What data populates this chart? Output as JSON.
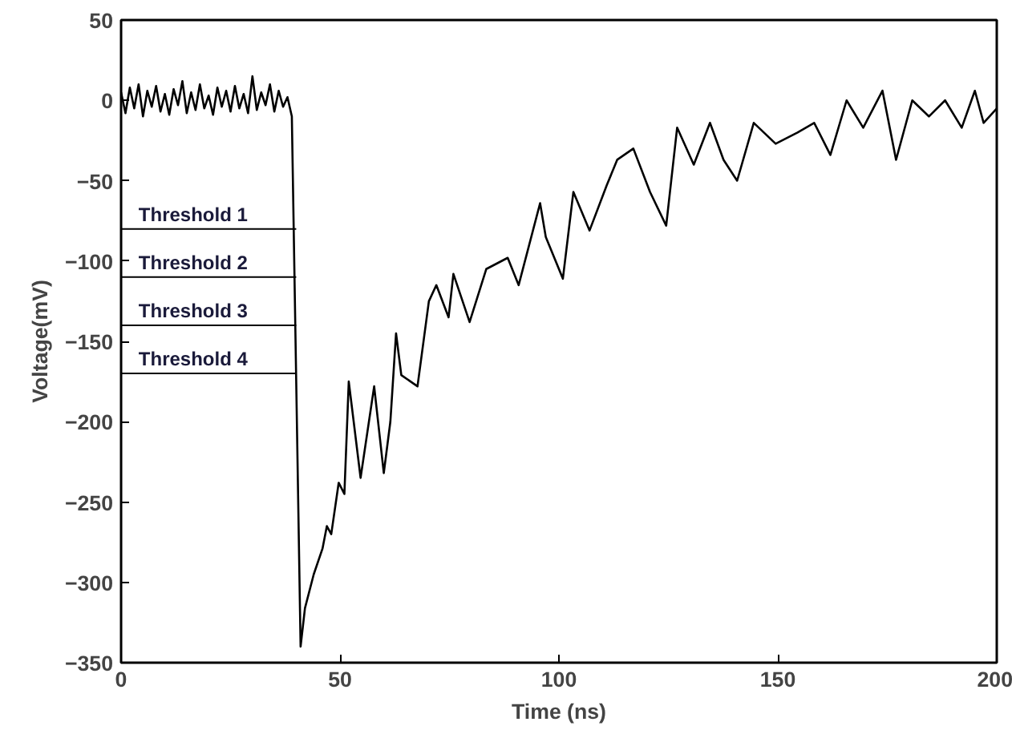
{
  "chart_data": {
    "type": "line",
    "xlabel": "Time (ns)",
    "ylabel": "Voltage(mV)",
    "xlim": [
      0,
      200
    ],
    "ylim": [
      -350,
      50
    ],
    "xticks": [
      0,
      50,
      100,
      150,
      200
    ],
    "yticks": [
      -350,
      -300,
      -250,
      -200,
      -150,
      -100,
      -50,
      0,
      50
    ],
    "grid": false,
    "legend": "left",
    "series": [
      {
        "color": "#000000",
        "x": [
          0,
          1,
          2,
          3,
          4,
          5,
          6,
          7,
          8,
          9,
          10,
          11,
          12,
          13,
          14,
          15,
          16,
          17,
          18,
          19,
          20,
          21,
          22,
          23,
          24,
          25,
          26,
          27,
          28,
          29,
          30,
          31,
          32,
          33,
          34,
          35,
          36,
          37,
          38,
          39,
          41,
          42,
          44,
          46,
          47,
          48,
          49.7,
          51,
          52,
          54.7,
          57.8,
          60,
          61.5,
          62.8,
          64,
          67.7,
          70.3,
          72,
          74.8,
          75.9,
          79.6,
          83.4,
          88.3,
          90.8,
          95.7,
          97,
          100.9,
          103.3,
          107,
          110.9,
          113.3,
          117,
          120.8,
          124.5,
          127,
          130.8,
          134.5,
          137.6,
          140.7,
          144.5,
          149.5,
          154.5,
          158.3,
          162,
          165.7,
          169.5,
          173.9,
          177,
          180.7,
          184.5,
          188.2,
          192,
          195,
          197,
          200
        ],
        "values": [
          5,
          -8,
          8,
          -5,
          10,
          -10,
          6,
          -4,
          9,
          -7,
          4,
          -9,
          7,
          -3,
          12,
          -8,
          5,
          -6,
          10,
          -5,
          3,
          -9,
          8,
          -4,
          6,
          -7,
          9,
          -5,
          4,
          -8,
          15,
          -6,
          5,
          -3,
          10,
          -7,
          6,
          -4,
          2,
          -10,
          -340,
          -316,
          -295,
          -279,
          -265,
          -270,
          -238,
          -245,
          -175,
          -235,
          -178,
          -232,
          -200,
          -145,
          -171,
          -178,
          -125,
          -115,
          -135,
          -108,
          -138,
          -105,
          -98,
          -115,
          -64,
          -85,
          -111,
          -57,
          -81,
          -53,
          -37,
          -30,
          -57,
          -78,
          -17,
          -40,
          -14,
          -37,
          -50,
          -14,
          -27,
          -20,
          -14,
          -34,
          0,
          -17,
          6,
          -37,
          0,
          -10,
          0,
          -17,
          6,
          -14,
          -5
        ]
      },
      {
        "name": "Threshold 1",
        "color": "#000000",
        "x": [
          0,
          40
        ],
        "values": [
          -80,
          -80
        ]
      },
      {
        "name": "Threshold 2",
        "color": "#000000",
        "x": [
          0,
          40
        ],
        "values": [
          -110,
          -110
        ]
      },
      {
        "name": "Threshold 3",
        "color": "#000000",
        "x": [
          0,
          40
        ],
        "values": [
          -140,
          -140
        ]
      },
      {
        "name": "Threshold 4",
        "color": "#000000",
        "x": [
          0,
          40
        ],
        "values": [
          -170,
          -170
        ]
      }
    ]
  }
}
